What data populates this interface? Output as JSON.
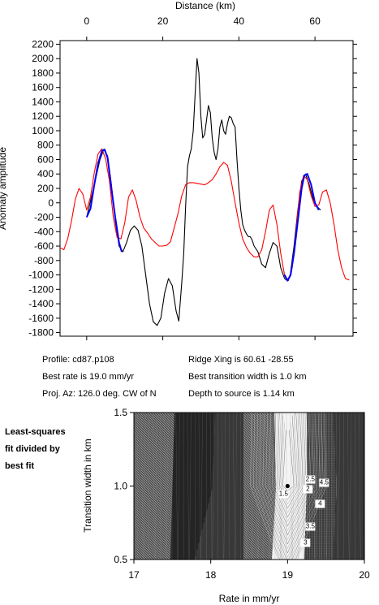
{
  "chart_data": [
    {
      "type": "line",
      "title": "",
      "xlabel": "Distance (km)",
      "ylabel": "Anomaly amplitude",
      "xlim": [
        -7,
        70
      ],
      "ylim": [
        -1850,
        2250
      ],
      "x_ticks": [
        0,
        20,
        40,
        60
      ],
      "y_ticks": [
        -1800,
        -1600,
        -1400,
        -1200,
        -1000,
        -800,
        -600,
        -400,
        -200,
        0,
        200,
        400,
        600,
        800,
        1000,
        1200,
        1400,
        1600,
        1800,
        2000,
        2200
      ],
      "grid": false,
      "colors": {
        "observed": "#000000",
        "model": "#ff0000",
        "fit": "#0000ff"
      },
      "series": [
        {
          "key": "observed",
          "color": "#000000",
          "x": [
            0,
            2,
            3.5,
            4.5,
            5.5,
            6.5,
            7.5,
            8.5,
            9.5,
            10.5,
            11.5,
            12.5,
            13.5,
            14.5,
            15.5,
            16.5,
            17.5,
            18.5,
            19.5,
            20.5,
            21.5,
            22.5,
            23.5,
            24.2,
            25,
            25.5,
            26,
            26.5,
            27,
            27.5,
            28,
            28.5,
            29,
            29.5,
            30,
            30.5,
            31,
            31.5,
            32,
            32.5,
            33,
            33.5,
            34,
            34.5,
            35,
            35.5,
            36,
            36.5,
            37,
            37.5,
            38,
            38.5,
            39,
            39.5,
            40,
            40.5,
            41,
            41.5,
            42,
            42.5,
            43,
            43.5,
            44,
            45,
            46,
            47,
            48,
            49,
            50,
            51,
            52,
            52.7,
            53.5,
            54.5,
            55.5,
            56.5,
            57.5,
            58.5,
            59.5,
            60.5,
            61.5
          ],
          "y": [
            -200,
            250,
            600,
            740,
            650,
            250,
            -250,
            -600,
            -680,
            -550,
            -380,
            -320,
            -380,
            -600,
            -1000,
            -1400,
            -1650,
            -1700,
            -1600,
            -1250,
            -1050,
            -1150,
            -1500,
            -1640,
            -1100,
            -700,
            -50,
            500,
            650,
            750,
            1000,
            1500,
            2000,
            1800,
            1200,
            900,
            950,
            1150,
            1350,
            1250,
            900,
            700,
            600,
            750,
            1050,
            1150,
            1000,
            950,
            1100,
            1200,
            1180,
            1100,
            1050,
            600,
            200,
            -100,
            -300,
            -380,
            -430,
            -470,
            -470,
            -520,
            -600,
            -680,
            -850,
            -900,
            -700,
            -550,
            -600,
            -900,
            -1050,
            -1080,
            -1000,
            -600,
            -100,
            300,
            400,
            250,
            50,
            -50,
            -100
          ]
        },
        {
          "key": "model",
          "color": "#ff0000",
          "x": [
            -8,
            -7,
            -6,
            -5,
            -4,
            -3,
            -2,
            -1,
            0,
            1,
            2,
            3,
            4,
            5,
            6,
            7,
            8,
            9,
            10,
            11,
            12,
            13,
            14,
            15,
            16,
            17,
            18,
            19,
            20,
            21,
            22,
            23,
            24,
            25,
            26,
            27,
            28,
            29,
            30,
            31,
            32,
            33,
            34,
            35,
            36,
            37,
            38,
            39,
            40,
            41,
            42,
            43,
            44,
            45,
            46,
            47,
            48,
            49,
            50,
            51,
            52,
            53,
            54,
            55,
            56,
            57,
            58,
            59,
            60,
            61,
            62,
            63,
            64,
            65,
            66,
            67,
            68,
            69
          ],
          "y": [
            -480,
            -620,
            -650,
            -500,
            -250,
            50,
            200,
            120,
            -100,
            80,
            420,
            680,
            750,
            600,
            300,
            -200,
            -480,
            -500,
            -280,
            80,
            180,
            30,
            -200,
            -350,
            -420,
            -500,
            -550,
            -600,
            -600,
            -590,
            -540,
            -350,
            -150,
            100,
            250,
            280,
            280,
            270,
            260,
            250,
            280,
            320,
            400,
            500,
            560,
            520,
            300,
            0,
            -280,
            -500,
            -620,
            -700,
            -750,
            -750,
            -650,
            -400,
            -100,
            -30,
            -300,
            -700,
            -1000,
            -1080,
            -900,
            -400,
            150,
            380,
            320,
            100,
            -50,
            -30,
            150,
            180,
            0,
            -300,
            -650,
            -900,
            -1050,
            -1070
          ]
        },
        {
          "key": "fit",
          "color": "#0000ff",
          "x": [
            0,
            1,
            2,
            3,
            4,
            4.7,
            5.5,
            6.5,
            7.5,
            8.5,
            9.2
          ],
          "y": [
            -200,
            -80,
            250,
            550,
            720,
            740,
            620,
            200,
            -200,
            -550,
            -680
          ]
        },
        {
          "key": "fit2",
          "color": "#0000ff",
          "x": [
            52,
            52.8,
            53.6,
            54.5,
            55.5,
            56.5,
            57.2,
            58,
            59,
            60,
            61
          ],
          "y": [
            -1000,
            -1080,
            -1000,
            -700,
            -250,
            200,
            380,
            400,
            250,
            0,
            -100
          ]
        }
      ]
    },
    {
      "type": "heatmap",
      "title": "",
      "xlabel": "Rate in mm/yr",
      "ylabel": "Transition width in km",
      "xlim": [
        17,
        20
      ],
      "ylim": [
        0.5,
        1.5
      ],
      "x_ticks": [
        17,
        18,
        19,
        20
      ],
      "y_ticks": [
        "0.5",
        "1.0",
        "1.5"
      ],
      "best_fit_point": {
        "x": 19.0,
        "y": 1.0
      },
      "contour_labels": [
        "1.5",
        "2",
        "2.5",
        "3",
        "3.5",
        "4",
        "4.5"
      ],
      "description_colors": {
        "dark": "#1a1a1a",
        "light": "#ffffff"
      }
    }
  ],
  "info": {
    "profile": "Profile: cd87.p108",
    "best_rate": "Best rate is 19.0 mm/yr",
    "proj_az": "Proj. Az: 126.0 deg. CW of N",
    "ridge_xing": "Ridge Xing is 60.61 -28.55",
    "best_width": "Best transition width is 1.0 km",
    "depth": "Depth to source is   1.14 km"
  },
  "side_note": [
    "Least-squares",
    "fit divided by",
    "best fit"
  ]
}
